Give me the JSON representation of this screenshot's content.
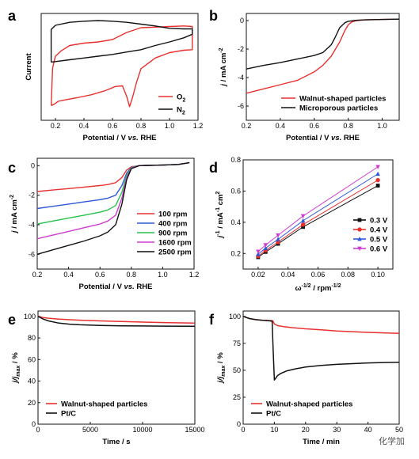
{
  "watermark": "化学加",
  "colors": {
    "red": "#e8312e",
    "black": "#111111",
    "blue": "#2f58d6",
    "green": "#27c24a",
    "magenta": "#cf3bcf",
    "violet": "#9a5fd6"
  },
  "chart_data": [
    {
      "id": "a",
      "type": "line",
      "panel_label": "a",
      "xlabel": "Potential / V vs. RHE",
      "ylabel": "Current",
      "xlim": [
        0.1,
        1.2
      ],
      "ylim": [
        -1.2,
        0.6
      ],
      "xticks": [
        0.2,
        0.4,
        0.6,
        0.8,
        1.0,
        1.2
      ],
      "xtick_labels": [
        "0.2",
        "0.4",
        "0.6",
        "0.8",
        "1.0",
        "1.2"
      ],
      "yticks": [],
      "ytick_labels": [],
      "legend_position": "bottom-right",
      "series": [
        {
          "name": "O₂",
          "color": "#e8312e",
          "width": 1.4,
          "x": [
            0.17,
            0.19,
            0.22,
            0.28,
            0.35,
            0.45,
            0.55,
            0.62,
            0.67,
            0.7,
            0.72,
            0.74,
            0.77,
            0.8,
            0.9,
            1.0,
            1.1,
            1.16,
            1.16,
            1.1,
            1.0,
            0.9,
            0.8,
            0.7,
            0.6,
            0.5,
            0.4,
            0.3,
            0.24,
            0.2,
            0.18,
            0.17
          ],
          "y": [
            -0.95,
            -0.93,
            -0.88,
            -0.85,
            -0.82,
            -0.77,
            -0.7,
            -0.63,
            -0.62,
            -0.8,
            -0.97,
            -0.82,
            -0.55,
            -0.33,
            -0.15,
            -0.06,
            -0.02,
            -0.01,
            0.38,
            0.39,
            0.38,
            0.37,
            0.36,
            0.28,
            0.16,
            0.12,
            0.1,
            0.06,
            -0.03,
            -0.12,
            -0.32,
            -0.95
          ]
        },
        {
          "name": "N₂",
          "color": "#111111",
          "width": 1.4,
          "x": [
            0.17,
            0.2,
            0.3,
            0.4,
            0.5,
            0.6,
            0.7,
            0.8,
            0.9,
            1.0,
            1.1,
            1.16,
            1.16,
            1.1,
            1.0,
            0.9,
            0.8,
            0.7,
            0.6,
            0.5,
            0.4,
            0.3,
            0.2,
            0.17,
            0.17
          ],
          "y": [
            -0.22,
            -0.21,
            -0.18,
            -0.15,
            -0.12,
            -0.09,
            -0.05,
            -0.01,
            0.06,
            0.12,
            0.19,
            0.25,
            0.34,
            0.34,
            0.35,
            0.39,
            0.42,
            0.45,
            0.47,
            0.48,
            0.47,
            0.45,
            0.4,
            0.33,
            -0.22
          ]
        }
      ]
    },
    {
      "id": "b",
      "type": "line",
      "panel_label": "b",
      "xlabel": "Potential / V vs. RHE",
      "ylabel": "j / mA cm⁻²",
      "xlim": [
        0.2,
        1.1
      ],
      "ylim": [
        -7,
        0.5
      ],
      "xticks": [
        0.2,
        0.4,
        0.6,
        0.8,
        1.0
      ],
      "xtick_labels": [
        "0.2",
        "0.4",
        "0.6",
        "0.8",
        "1.0"
      ],
      "yticks": [
        0,
        -2,
        -4,
        -6
      ],
      "ytick_labels": [
        "0",
        "-2",
        "-4",
        "-6"
      ],
      "legend_position": "bottom-right",
      "series": [
        {
          "name": "Walnut-shaped particles",
          "color": "#e8312e",
          "width": 1.4,
          "x": [
            0.2,
            0.3,
            0.4,
            0.5,
            0.6,
            0.65,
            0.7,
            0.75,
            0.78,
            0.8,
            0.82,
            0.85,
            0.9,
            1.0,
            1.1
          ],
          "y": [
            -5.1,
            -4.8,
            -4.5,
            -4.2,
            -3.6,
            -3.15,
            -2.5,
            -1.5,
            -0.7,
            -0.3,
            -0.1,
            0.0,
            0.05,
            0.08,
            0.1
          ]
        },
        {
          "name": "Microporous particles",
          "color": "#111111",
          "width": 1.4,
          "x": [
            0.2,
            0.3,
            0.4,
            0.5,
            0.6,
            0.65,
            0.7,
            0.72,
            0.75,
            0.78,
            0.8,
            0.85,
            0.9,
            1.0,
            1.1
          ],
          "y": [
            -3.4,
            -3.15,
            -2.95,
            -2.7,
            -2.45,
            -2.25,
            -1.7,
            -1.25,
            -0.5,
            -0.15,
            -0.05,
            0.02,
            0.05,
            0.08,
            0.1
          ]
        }
      ]
    },
    {
      "id": "c",
      "type": "line",
      "panel_label": "c",
      "xlabel": "Potential / V vs. RHE",
      "ylabel": "j / mA cm⁻²",
      "xlim": [
        0.2,
        1.2
      ],
      "ylim": [
        -7,
        0.5
      ],
      "xticks": [
        0.2,
        0.4,
        0.6,
        0.8,
        1.0,
        1.2
      ],
      "xtick_labels": [
        "0.2",
        "0.4",
        "0.6",
        "0.8",
        "1.0",
        "1.2"
      ],
      "yticks": [
        0,
        -2,
        -4,
        -6
      ],
      "ytick_labels": [
        "0",
        "-2",
        "-4",
        "-6"
      ],
      "legend_position": "bottom-right",
      "series": [
        {
          "name": "100 rpm",
          "color": "#e8312e",
          "width": 1.4,
          "x": [
            0.2,
            0.3,
            0.4,
            0.5,
            0.6,
            0.65,
            0.7,
            0.74,
            0.77,
            0.8,
            0.85,
            0.9,
            1.0,
            1.1,
            1.17
          ],
          "y": [
            -1.75,
            -1.65,
            -1.55,
            -1.45,
            -1.35,
            -1.28,
            -1.15,
            -0.8,
            -0.3,
            -0.08,
            0.0,
            0.02,
            0.04,
            0.08,
            0.2
          ]
        },
        {
          "name": "400 rpm",
          "color": "#2f58d6",
          "width": 1.4,
          "x": [
            0.2,
            0.3,
            0.4,
            0.5,
            0.6,
            0.65,
            0.7,
            0.74,
            0.77,
            0.8,
            0.85,
            0.9,
            1.0,
            1.1,
            1.17
          ],
          "y": [
            -2.9,
            -2.75,
            -2.6,
            -2.45,
            -2.3,
            -2.2,
            -2.0,
            -1.35,
            -0.5,
            -0.12,
            0.0,
            0.02,
            0.04,
            0.08,
            0.2
          ]
        },
        {
          "name": "900 rpm",
          "color": "#27c24a",
          "width": 1.4,
          "x": [
            0.2,
            0.3,
            0.4,
            0.5,
            0.6,
            0.65,
            0.7,
            0.74,
            0.77,
            0.8,
            0.85,
            0.9,
            1.0,
            1.1,
            1.17
          ],
          "y": [
            -3.95,
            -3.75,
            -3.55,
            -3.35,
            -3.15,
            -3.0,
            -2.7,
            -1.8,
            -0.65,
            -0.15,
            0.0,
            0.02,
            0.04,
            0.08,
            0.2
          ]
        },
        {
          "name": "1600 rpm",
          "color": "#cf3bcf",
          "width": 1.4,
          "x": [
            0.2,
            0.3,
            0.4,
            0.5,
            0.6,
            0.65,
            0.7,
            0.74,
            0.77,
            0.8,
            0.85,
            0.9,
            1.0,
            1.1,
            1.17
          ],
          "y": [
            -4.95,
            -4.7,
            -4.45,
            -4.2,
            -3.95,
            -3.75,
            -3.35,
            -2.2,
            -0.8,
            -0.18,
            0.0,
            0.02,
            0.04,
            0.08,
            0.2
          ]
        },
        {
          "name": "2500 rpm",
          "color": "#111111",
          "width": 1.4,
          "x": [
            0.2,
            0.3,
            0.4,
            0.5,
            0.6,
            0.65,
            0.7,
            0.74,
            0.77,
            0.8,
            0.85,
            0.9,
            1.0,
            1.1,
            1.17
          ],
          "y": [
            -6.0,
            -5.7,
            -5.4,
            -5.1,
            -4.75,
            -4.5,
            -4.0,
            -2.6,
            -0.95,
            -0.2,
            0.0,
            0.02,
            0.04,
            0.08,
            0.2
          ]
        }
      ]
    },
    {
      "id": "d",
      "type": "scatter",
      "panel_label": "d",
      "xlabel": "ω⁻¹ᐟ² / rpm⁻¹ᐟ²",
      "ylabel": "j⁻¹ / mA⁻¹ cm²",
      "xlim": [
        0.01,
        0.11
      ],
      "ylim": [
        0.1,
        0.8
      ],
      "xticks": [
        0.02,
        0.04,
        0.06,
        0.08,
        0.1
      ],
      "xtick_labels": [
        "0.02",
        "0.04",
        "0.06",
        "0.08",
        "0.10"
      ],
      "yticks": [
        0.2,
        0.4,
        0.6,
        0.8
      ],
      "ytick_labels": [
        "0.2",
        "0.4",
        "0.6",
        "0.8"
      ],
      "legend_position": "bottom-right",
      "series": [
        {
          "name": "0.3 V",
          "color": "#111111",
          "marker": "square",
          "x": [
            0.02,
            0.025,
            0.0333,
            0.05,
            0.1
          ],
          "y": [
            0.176,
            0.21,
            0.262,
            0.37,
            0.635
          ]
        },
        {
          "name": "0.4 V",
          "color": "#e8312e",
          "marker": "circle",
          "x": [
            0.02,
            0.025,
            0.0333,
            0.05,
            0.1
          ],
          "y": [
            0.183,
            0.22,
            0.273,
            0.385,
            0.67
          ]
        },
        {
          "name": "0.5 V",
          "color": "#2f58d6",
          "marker": "triangle-up",
          "x": [
            0.02,
            0.025,
            0.0333,
            0.05,
            0.1
          ],
          "y": [
            0.196,
            0.234,
            0.291,
            0.41,
            0.71
          ]
        },
        {
          "name": "0.6 V",
          "color": "#cf3bcf",
          "marker": "triangle-down",
          "x": [
            0.02,
            0.025,
            0.0333,
            0.05,
            0.1
          ],
          "y": [
            0.212,
            0.254,
            0.316,
            0.44,
            0.755
          ]
        }
      ]
    },
    {
      "id": "e",
      "type": "line",
      "panel_label": "e",
      "xlabel": "Time / s",
      "ylabel": "j/j_max / %",
      "xlim": [
        0,
        15000
      ],
      "ylim": [
        0,
        105
      ],
      "xticks": [
        0,
        5000,
        10000,
        15000
      ],
      "xtick_labels": [
        "0",
        "5000",
        "10000",
        "15000"
      ],
      "yticks": [
        0,
        20,
        40,
        60,
        80,
        100
      ],
      "ytick_labels": [
        "0",
        "20",
        "40",
        "60",
        "80",
        "100"
      ],
      "legend_position": "bottom-left",
      "series": [
        {
          "name": "Walnut-shaped particles",
          "color": "#e8312e",
          "width": 1.5,
          "x": [
            0,
            500,
            1000,
            2000,
            4000,
            6000,
            8000,
            10000,
            12000,
            15000
          ],
          "y": [
            100,
            99,
            98.3,
            97.5,
            96.5,
            95.8,
            95.2,
            94.7,
            94.3,
            93.8
          ]
        },
        {
          "name": "Pt/C",
          "color": "#111111",
          "width": 1.5,
          "x": [
            0,
            500,
            1000,
            2000,
            3000,
            4000,
            6000,
            8000,
            10000,
            12000,
            15000
          ],
          "y": [
            100,
            97.5,
            95.8,
            93.8,
            92.8,
            92.2,
            91.6,
            91.3,
            91.1,
            91.0,
            90.8
          ]
        }
      ]
    },
    {
      "id": "f",
      "type": "line",
      "panel_label": "f",
      "xlabel": "Time / min",
      "ylabel": "j/j_max / %",
      "xlim": [
        0,
        50
      ],
      "ylim": [
        0,
        105
      ],
      "xticks": [
        0,
        10,
        20,
        30,
        40,
        50
      ],
      "xtick_labels": [
        "0",
        "10",
        "20",
        "30",
        "40",
        "50"
      ],
      "yticks": [
        0,
        25,
        50,
        75,
        100
      ],
      "ytick_labels": [
        "0",
        "25",
        "50",
        "75",
        "100"
      ],
      "legend_position": "bottom-left",
      "series": [
        {
          "name": "Walnut-shaped particles",
          "color": "#e8312e",
          "width": 1.5,
          "x": [
            0,
            2,
            4,
            6,
            8,
            9.5,
            10,
            11,
            13,
            16,
            20,
            25,
            30,
            35,
            40,
            45,
            50
          ],
          "y": [
            100,
            98,
            97,
            96.5,
            96.2,
            96,
            93,
            91.5,
            90.5,
            89.5,
            88.5,
            87.5,
            86.5,
            85.8,
            85.2,
            84.7,
            84.2
          ]
        },
        {
          "name": "Pt/C",
          "color": "#111111",
          "width": 1.5,
          "x": [
            0,
            2,
            4,
            6,
            8,
            9.3,
            9.6,
            10,
            10.5,
            11,
            12,
            14,
            17,
            20,
            25,
            30,
            35,
            40,
            45,
            50
          ],
          "y": [
            100,
            98,
            97,
            96.5,
            96,
            95.5,
            70,
            41,
            43,
            45,
            47,
            49.5,
            51.5,
            53,
            54.5,
            55.5,
            56.2,
            56.8,
            57.2,
            57.5
          ]
        }
      ]
    }
  ]
}
